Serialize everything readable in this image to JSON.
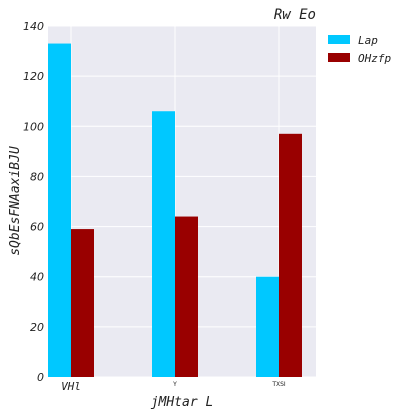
{
  "chart_data": {
    "type": "bar",
    "title": "Rw Eo",
    "xlabel": "jMHtar L",
    "ylabel": "sQbEsFNAaxiBJU",
    "categories": [
      "VHl",
      "Y",
      "TXSI"
    ],
    "series": [
      {
        "name": "Lap",
        "color": "#00c8ff",
        "values": [
          133,
          106,
          40
        ]
      },
      {
        "name": "OHzfp",
        "color": "#990000",
        "values": [
          59,
          64,
          97
        ]
      }
    ],
    "ylim": [
      0,
      140
    ],
    "yticks": [
      0,
      20,
      40,
      60,
      80,
      100,
      120,
      140
    ],
    "grid": true,
    "legend_position": "right-top",
    "background": "#eaeaf2"
  }
}
